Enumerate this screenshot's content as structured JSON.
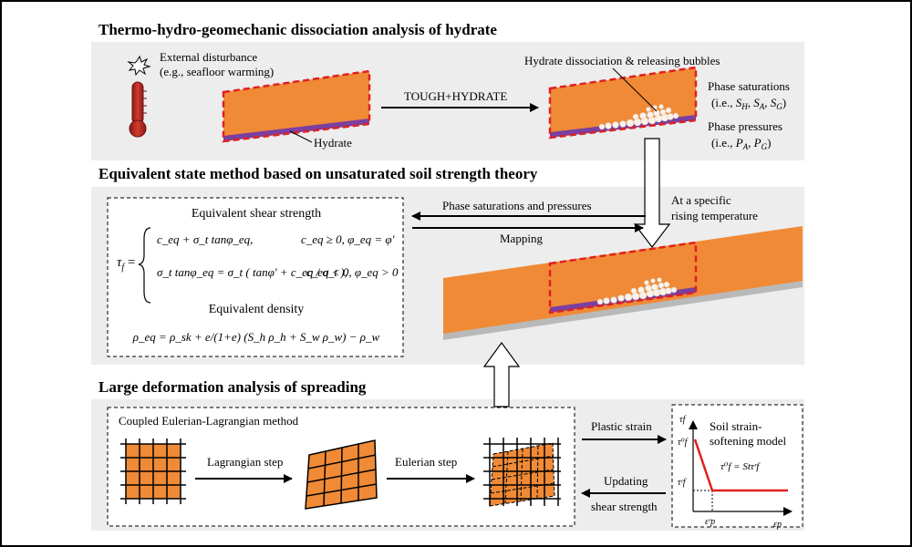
{
  "sections": {
    "s1_title": "Thermo-hydro-geomechanic dissociation analysis of hydrate",
    "s2_title": "Equivalent state method based on unsaturated soil strength theory",
    "s3_title": "Large deformation analysis of spreading"
  },
  "panel1": {
    "external_line1": "External disturbance",
    "external_line2": "(e.g., seafloor warming)",
    "hydrate_label": "Hydrate",
    "tough_label": "TOUGH+HYDRATE",
    "dissociation_label": "Hydrate dissociation & releasing bubbles",
    "phase_sat_line1": "Phase saturations",
    "phase_sat_prefix": "(i.e., ",
    "phase_sat_SH": "S",
    "phase_sat_SH_sub": "H",
    "phase_sat_SA": "S",
    "phase_sat_SA_sub": "A",
    "phase_sat_SG": "S",
    "phase_sat_SG_sub": "G",
    "phase_press_line1": "Phase pressures",
    "phase_press_prefix": "(i.e., ",
    "phase_press_PA": "P",
    "phase_press_PA_sub": "A",
    "phase_press_PG": "P",
    "phase_press_PG_sub": "G",
    "comma": ", ",
    "close_paren": ")"
  },
  "panel2": {
    "eq_shear_title": "Equivalent shear strength",
    "eq_density_title": "Equivalent density",
    "phase_sat_pressures": "Phase saturations and pressures",
    "mapping": "Mapping",
    "specific_line1": "At a specific",
    "specific_line2": "rising temperature",
    "tau_f": "τ",
    "tau_sub": "f",
    "eq_sign": " =",
    "row1_expr": "c_eq + σ_t tanφ_eq,",
    "row1_cond": "c_eq ≥ 0,   φ_eq = φ'",
    "row2_expr": "σ_t tanφ_eq = σ_t ( tanφ' + c_eq / σ_t ),",
    "row2_cond": "c_eq < 0,   φ_eq > 0",
    "density_eq": "ρ_eq = ρ_sk + e/(1+e) (S_h ρ_h + S_w ρ_w) − ρ_w"
  },
  "panel3": {
    "cel_title": "Coupled Eulerian-Lagrangian method",
    "lagrangian_step": "Lagrangian step",
    "eulerian_step": "Eulerian step",
    "plastic_strain": "Plastic strain",
    "updating_line1": "Updating",
    "updating_line2": "shear strength",
    "soil_model_line1": "Soil strain-",
    "soil_model_line2": "softening model",
    "model_eq": "τ⁰f = Stτʳf",
    "axis_tau": "τf",
    "axis_eps": "εp",
    "tick_tau0": "τ⁰f",
    "tick_taur": "τʳf",
    "tick_epsr": "εʳp"
  }
}
